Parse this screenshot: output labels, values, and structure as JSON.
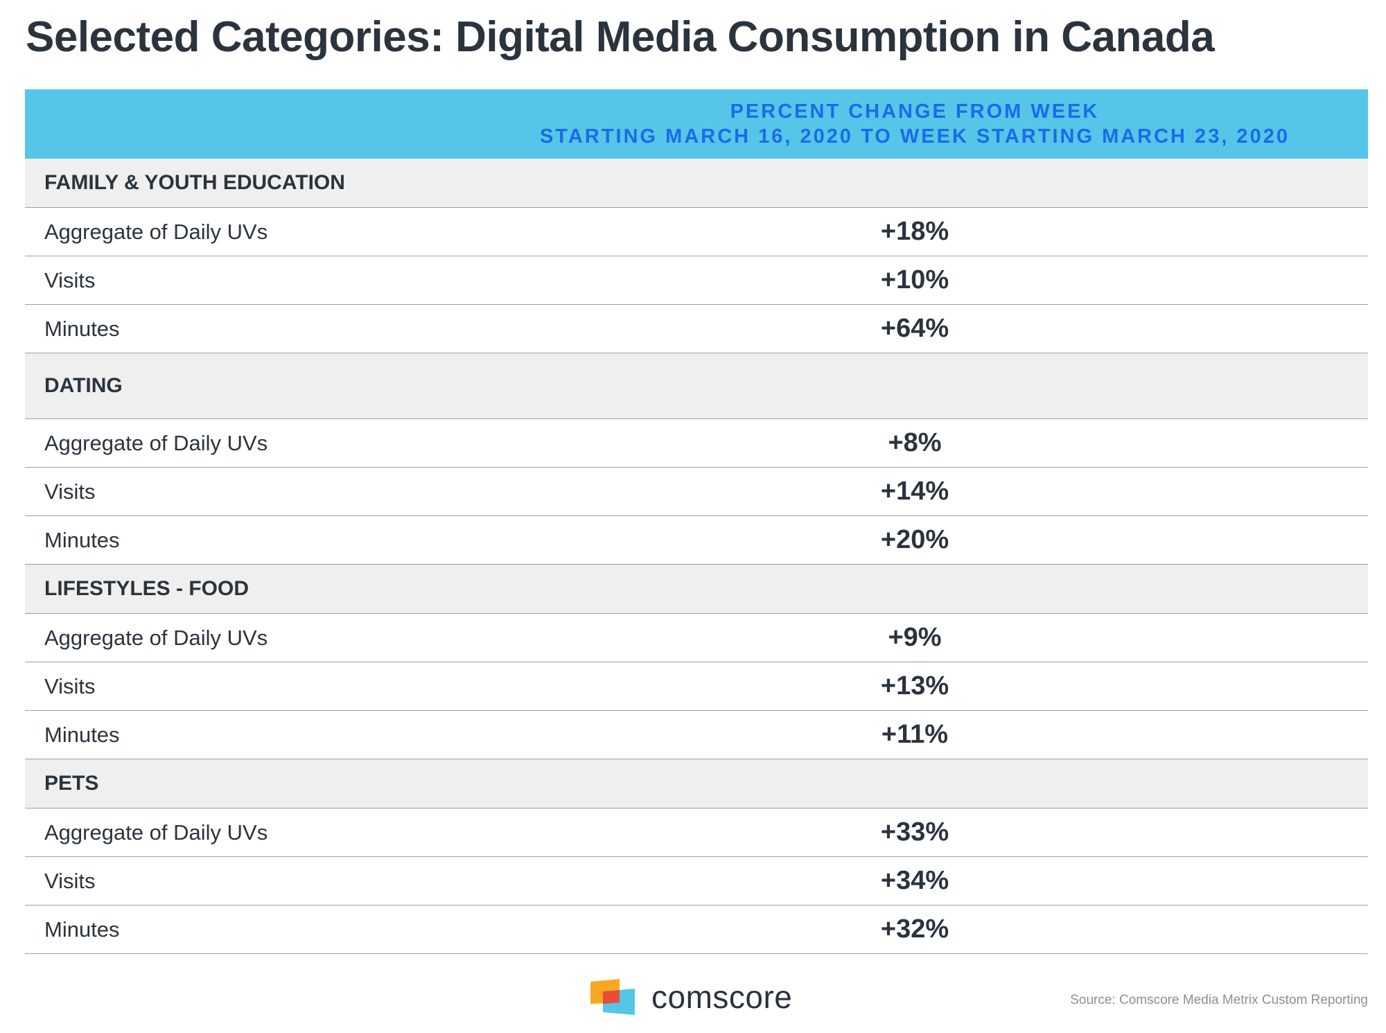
{
  "title": "Selected Categories: Digital Media Consumption in Canada",
  "header": {
    "line1": "PERCENT CHANGE FROM WEEK",
    "line2": "STARTING MARCH 16, 2020 TO WEEK STARTING MARCH 23, 2020"
  },
  "chart_data": {
    "type": "table",
    "title": "Selected Categories: Digital Media Consumption in Canada",
    "column_header": "PERCENT CHANGE FROM WEEK STARTING MARCH 16, 2020 TO WEEK STARTING MARCH 23, 2020",
    "sections": [
      {
        "name": "FAMILY & YOUTH EDUCATION",
        "rows": [
          {
            "metric": "Aggregate of Daily UVs",
            "value": "+18%"
          },
          {
            "metric": "Visits",
            "value": "+10%"
          },
          {
            "metric": "Minutes",
            "value": "+64%"
          }
        ]
      },
      {
        "name": "DATING",
        "rows": [
          {
            "metric": "Aggregate of Daily UVs",
            "value": "+8%"
          },
          {
            "metric": "Visits",
            "value": "+14%"
          },
          {
            "metric": "Minutes",
            "value": "+20%"
          }
        ]
      },
      {
        "name": "LIFESTYLES - FOOD",
        "rows": [
          {
            "metric": "Aggregate of Daily UVs",
            "value": "+9%"
          },
          {
            "metric": "Visits",
            "value": "+13%"
          },
          {
            "metric": "Minutes",
            "value": "+11%"
          }
        ]
      },
      {
        "name": "PETS",
        "rows": [
          {
            "metric": "Aggregate of Daily UVs",
            "value": "+33%"
          },
          {
            "metric": "Visits",
            "value": "+34%"
          },
          {
            "metric": "Minutes",
            "value": "+32%"
          }
        ]
      }
    ]
  },
  "footer": {
    "logo_text": "comscore",
    "source": "Source: Comscore Media Metrix Custom Reporting"
  },
  "colors": {
    "header_bg": "#55c6e7",
    "header_text": "#1a6be8",
    "section_bg": "#eeefee",
    "text": "#2b333d",
    "logo_orange": "#f7a823",
    "logo_red": "#e94d38",
    "logo_blue": "#55c6e7"
  }
}
